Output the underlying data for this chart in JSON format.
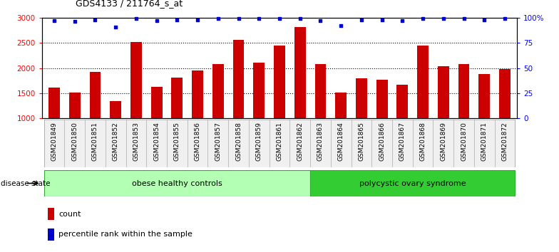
{
  "title": "GDS4133 / 211764_s_at",
  "samples": [
    "GSM201849",
    "GSM201850",
    "GSM201851",
    "GSM201852",
    "GSM201853",
    "GSM201854",
    "GSM201855",
    "GSM201856",
    "GSM201857",
    "GSM201858",
    "GSM201859",
    "GSM201861",
    "GSM201862",
    "GSM201863",
    "GSM201864",
    "GSM201865",
    "GSM201866",
    "GSM201867",
    "GSM201868",
    "GSM201869",
    "GSM201870",
    "GSM201871",
    "GSM201872"
  ],
  "counts": [
    1610,
    1510,
    1930,
    1350,
    2520,
    1625,
    1815,
    1950,
    2075,
    2560,
    2100,
    2440,
    2820,
    2075,
    1520,
    1800,
    1775,
    1665,
    2450,
    2040,
    2075,
    1880,
    1975
  ],
  "percentile_ranks": [
    97,
    96,
    98,
    91,
    99,
    97,
    98,
    98,
    99,
    99,
    99,
    99,
    99,
    97,
    92,
    98,
    98,
    97,
    99,
    99,
    99,
    98,
    99
  ],
  "groups": [
    {
      "label": "obese healthy controls",
      "start": 0,
      "end": 12,
      "color": "#b3ffb3",
      "edge_color": "#33aa33"
    },
    {
      "label": "polycystic ovary syndrome",
      "start": 13,
      "end": 22,
      "color": "#33cc33",
      "edge_color": "#33aa33"
    }
  ],
  "bar_color": "#cc0000",
  "percentile_color": "#0000cc",
  "ylim_left": [
    1000,
    3000
  ],
  "yticks_left": [
    1000,
    1500,
    2000,
    2500,
    3000
  ],
  "ylim_right": [
    0,
    100
  ],
  "yticks_right": [
    0,
    25,
    50,
    75,
    100
  ],
  "ytick_labels_right": [
    "0",
    "25",
    "50",
    "75",
    "100%"
  ],
  "bar_width": 0.55,
  "bg_color": "#ffffff",
  "grid_color": "#000000",
  "disease_state_label": "disease state",
  "legend_count_label": "count",
  "legend_percentile_label": "percentile rank within the sample"
}
